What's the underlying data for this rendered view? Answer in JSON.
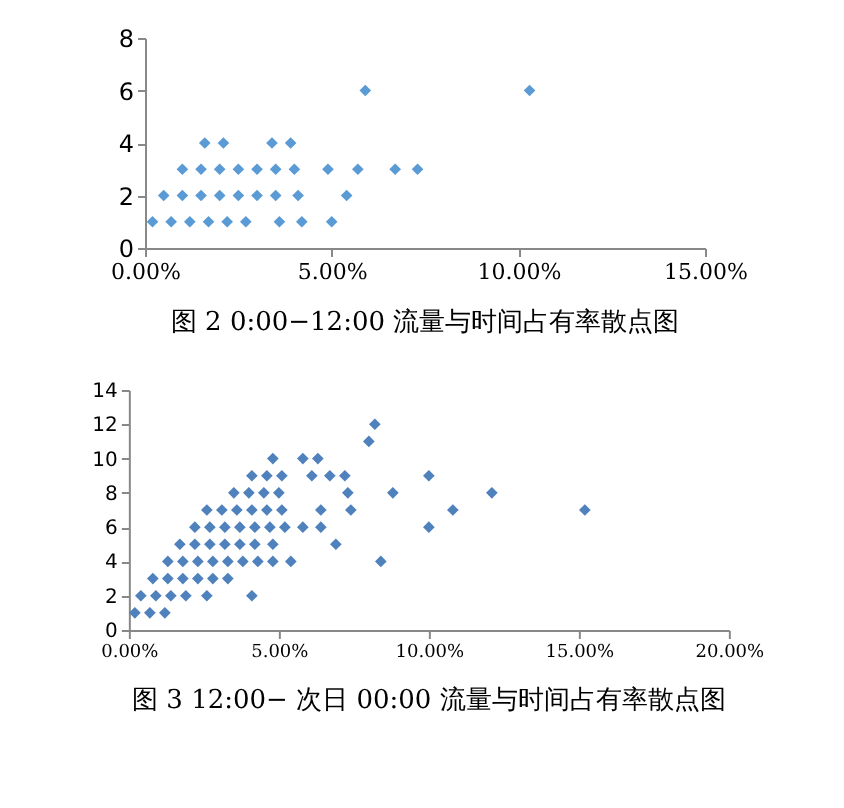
{
  "chart_data": [
    {
      "type": "scatter",
      "title": "图 2 0:00−12:00 流量与时间占有率散点图",
      "marker": "diamond",
      "grid": false,
      "xlim": [
        0,
        15
      ],
      "ylim": [
        0,
        8
      ],
      "xticks": [
        {
          "value": 0,
          "label": "0.00%"
        },
        {
          "value": 5,
          "label": "5.00%"
        },
        {
          "value": 10,
          "label": "10.00%"
        },
        {
          "value": 15,
          "label": "15.00%"
        }
      ],
      "yticks": [
        0,
        2,
        4,
        6,
        8
      ],
      "series": [
        {
          "color": "#5b9bd5",
          "x": [
            0.2,
            0.7,
            1.2,
            1.7,
            2.2,
            2.7,
            3.6,
            4.2,
            5.0,
            0.5,
            1.0,
            1.5,
            2.0,
            2.5,
            3.0,
            3.5,
            4.1,
            5.4,
            1.0,
            1.5,
            2.0,
            2.5,
            3.0,
            3.5,
            4.0,
            4.9,
            5.7,
            6.7,
            7.3,
            1.6,
            2.1,
            3.4,
            3.9,
            5.9,
            10.3
          ],
          "values": [
            1,
            1,
            1,
            1,
            1,
            1,
            1,
            1,
            1,
            2,
            2,
            2,
            2,
            2,
            2,
            2,
            2,
            2,
            3,
            3,
            3,
            3,
            3,
            3,
            3,
            3,
            3,
            3,
            3,
            4,
            4,
            4,
            4,
            6,
            6
          ]
        }
      ]
    },
    {
      "type": "scatter",
      "title": "图 3 12:00− 次日 00:00 流量与时间占有率散点图",
      "marker": "diamond",
      "grid": false,
      "xlim": [
        0,
        20
      ],
      "ylim": [
        0,
        14
      ],
      "xticks": [
        {
          "value": 0,
          "label": "0.00%"
        },
        {
          "value": 5,
          "label": "5.00%"
        },
        {
          "value": 10,
          "label": "10.00%"
        },
        {
          "value": 15,
          "label": "15.00%"
        },
        {
          "value": 20,
          "label": "20.00%"
        }
      ],
      "yticks": [
        0,
        2,
        4,
        6,
        8,
        10,
        12,
        14
      ],
      "series": [
        {
          "color": "#4f81bd",
          "x": [
            0.2,
            0.7,
            1.2,
            0.4,
            0.9,
            1.4,
            1.9,
            2.6,
            4.1,
            0.8,
            1.3,
            1.8,
            2.3,
            2.8,
            3.3,
            1.3,
            1.8,
            2.3,
            2.8,
            3.3,
            3.8,
            4.3,
            4.8,
            5.4,
            8.4,
            1.7,
            2.2,
            2.7,
            3.2,
            3.7,
            4.2,
            4.8,
            6.9,
            2.2,
            2.7,
            3.2,
            3.7,
            4.2,
            4.7,
            5.2,
            5.8,
            6.4,
            10.0,
            2.6,
            3.1,
            3.6,
            4.1,
            4.6,
            5.1,
            6.4,
            7.4,
            10.8,
            15.2,
            3.5,
            4.0,
            4.5,
            5.0,
            7.3,
            8.8,
            12.1,
            4.1,
            4.6,
            5.1,
            6.1,
            6.7,
            7.2,
            10.0,
            4.8,
            5.8,
            6.3,
            8.0,
            8.2
          ],
          "values": [
            1,
            1,
            1,
            2,
            2,
            2,
            2,
            2,
            2,
            3,
            3,
            3,
            3,
            3,
            3,
            4,
            4,
            4,
            4,
            4,
            4,
            4,
            4,
            4,
            4,
            5,
            5,
            5,
            5,
            5,
            5,
            5,
            5,
            6,
            6,
            6,
            6,
            6,
            6,
            6,
            6,
            6,
            6,
            7,
            7,
            7,
            7,
            7,
            7,
            7,
            7,
            7,
            7,
            8,
            8,
            8,
            8,
            8,
            8,
            8,
            9,
            9,
            9,
            9,
            9,
            9,
            9,
            10,
            10,
            10,
            11,
            12
          ]
        }
      ]
    }
  ]
}
